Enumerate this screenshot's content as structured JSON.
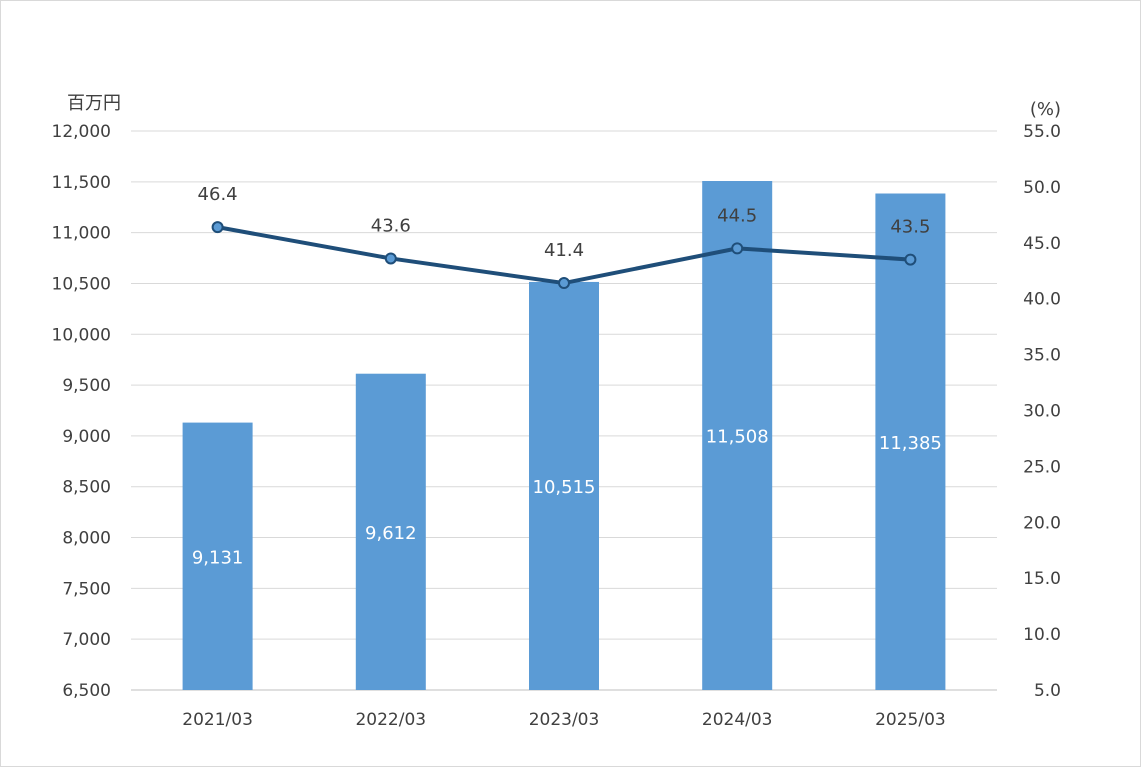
{
  "chart_data": {
    "type": "bar",
    "categories": [
      "2021/03",
      "2022/03",
      "2023/03",
      "2024/03",
      "2025/03"
    ],
    "series": [
      {
        "values": [
          9131,
          9612,
          10515,
          11508,
          11385
        ],
        "axis": "left",
        "type": "bar",
        "color": "#5b9bd5",
        "labels": [
          "9,131",
          "9,612",
          "10,515",
          "11,508",
          "11,385"
        ]
      },
      {
        "values": [
          46.4,
          43.6,
          41.4,
          44.5,
          43.5
        ],
        "axis": "right",
        "type": "line",
        "color": "#1f4e79",
        "labels": [
          "46.4",
          "43.6",
          "41.4",
          "44.5",
          "43.5"
        ]
      }
    ],
    "y_left": {
      "unit": "百万円",
      "min": 6500,
      "max": 12000,
      "step": 500,
      "ticks": [
        "6,500",
        "7,000",
        "7,500",
        "8,000",
        "8,500",
        "9,000",
        "9,500",
        "10,000",
        "10,500",
        "11,000",
        "11,500",
        "12,000"
      ]
    },
    "y_right": {
      "unit": "(%)",
      "min": 5,
      "max": 55,
      "step": 5,
      "ticks": [
        "5.0",
        "10.0",
        "15.0",
        "20.0",
        "25.0",
        "30.0",
        "35.0",
        "40.0",
        "45.0",
        "50.0",
        "55.0"
      ]
    },
    "grid": true,
    "legend": "none"
  }
}
